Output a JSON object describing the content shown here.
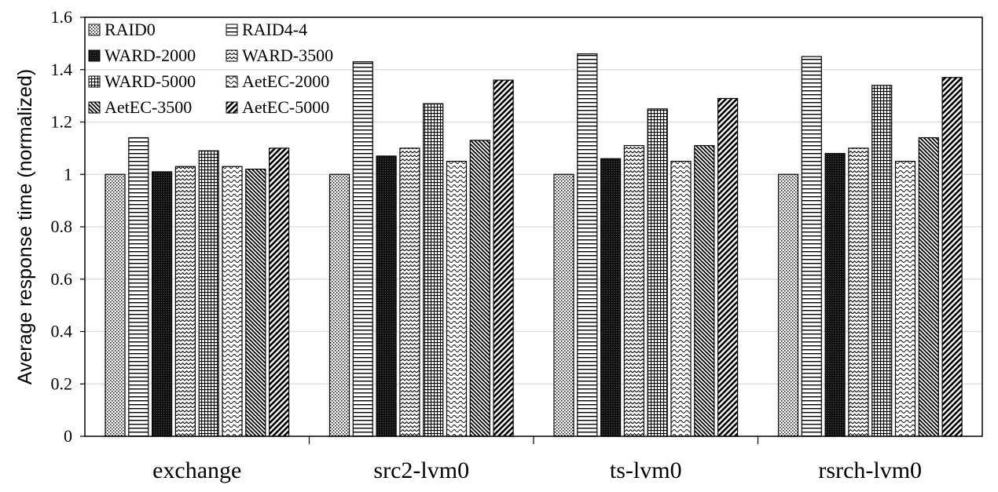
{
  "chart_data": {
    "type": "bar",
    "title": "",
    "xlabel": "",
    "ylabel": "Average response time (normalized)",
    "ylim": [
      0,
      1.6
    ],
    "yticks": [
      "0",
      "0.2",
      "0.4",
      "0.6",
      "0.8",
      "1",
      "1.2",
      "1.4",
      "1.6"
    ],
    "grid": "horizontal",
    "legend_position": "top-left",
    "categories": [
      "exchange",
      "src2-lvm0",
      "ts-lvm0",
      "rsrch-lvm0"
    ],
    "series": [
      {
        "name": "RAID0",
        "pattern": "dots",
        "values": [
          1.0,
          1.0,
          1.0,
          1.0
        ]
      },
      {
        "name": "RAID4-4",
        "pattern": "hlines",
        "values": [
          1.14,
          1.43,
          1.46,
          1.45
        ]
      },
      {
        "name": "WARD-2000",
        "pattern": "dense",
        "values": [
          1.01,
          1.07,
          1.06,
          1.08
        ]
      },
      {
        "name": "WARD-3500",
        "pattern": "zigzag",
        "values": [
          1.03,
          1.1,
          1.11,
          1.1
        ]
      },
      {
        "name": "WARD-5000",
        "pattern": "grid",
        "values": [
          1.09,
          1.27,
          1.25,
          1.34
        ]
      },
      {
        "name": "AetEC-2000",
        "pattern": "waves",
        "values": [
          1.03,
          1.05,
          1.05,
          1.05
        ]
      },
      {
        "name": "AetEC-3500",
        "pattern": "diagdown",
        "values": [
          1.02,
          1.13,
          1.11,
          1.14
        ]
      },
      {
        "name": "AetEC-5000",
        "pattern": "diagup",
        "values": [
          1.1,
          1.36,
          1.29,
          1.37
        ]
      }
    ]
  }
}
